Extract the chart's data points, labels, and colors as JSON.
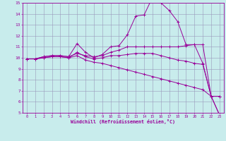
{
  "xlabel": "Windchill (Refroidissement éolien,°C)",
  "xlim": [
    -0.5,
    23.5
  ],
  "ylim": [
    5,
    15
  ],
  "xticks": [
    0,
    1,
    2,
    3,
    4,
    5,
    6,
    7,
    8,
    9,
    10,
    11,
    12,
    13,
    14,
    15,
    16,
    17,
    18,
    19,
    20,
    21,
    22,
    23
  ],
  "yticks": [
    5,
    6,
    7,
    8,
    9,
    10,
    11,
    12,
    13,
    14,
    15
  ],
  "bg_color": "#c8ecec",
  "line_color": "#990099",
  "grid_color": "#9999bb",
  "curves": [
    {
      "x": [
        0,
        1,
        2,
        3,
        4,
        5,
        6,
        7,
        8,
        9,
        10,
        11,
        12,
        13,
        14,
        15,
        16,
        17,
        18,
        19,
        20,
        21,
        22,
        23
      ],
      "y": [
        9.9,
        9.9,
        10.1,
        10.2,
        10.2,
        10.1,
        11.3,
        10.5,
        10.0,
        10.3,
        11.0,
        11.1,
        12.1,
        13.8,
        13.9,
        15.5,
        15.0,
        14.3,
        13.3,
        11.2,
        11.2,
        9.5,
        6.5,
        6.5
      ]
    },
    {
      "x": [
        0,
        1,
        2,
        3,
        4,
        5,
        6,
        7,
        8,
        9,
        10,
        11,
        12,
        13,
        14,
        15,
        16,
        17,
        18,
        19,
        20,
        21,
        22,
        23
      ],
      "y": [
        9.9,
        9.9,
        10.1,
        10.2,
        10.2,
        10.1,
        10.4,
        10.2,
        10.1,
        10.2,
        10.5,
        10.7,
        11.0,
        11.0,
        11.0,
        11.0,
        11.0,
        11.0,
        11.0,
        11.1,
        11.2,
        11.2,
        6.5,
        6.5
      ]
    },
    {
      "x": [
        0,
        1,
        2,
        3,
        4,
        5,
        6,
        7,
        8,
        9,
        10,
        11,
        12,
        13,
        14,
        15,
        16,
        17,
        18,
        19,
        20,
        21,
        22,
        23
      ],
      "y": [
        9.9,
        9.9,
        10.0,
        10.1,
        10.1,
        10.0,
        10.5,
        10.1,
        9.9,
        10.0,
        10.2,
        10.2,
        10.3,
        10.4,
        10.4,
        10.4,
        10.2,
        10.0,
        9.8,
        9.7,
        9.5,
        9.4,
        6.5,
        4.8
      ]
    },
    {
      "x": [
        0,
        1,
        2,
        3,
        4,
        5,
        6,
        7,
        8,
        9,
        10,
        11,
        12,
        13,
        14,
        15,
        16,
        17,
        18,
        19,
        20,
        21,
        22,
        23
      ],
      "y": [
        9.9,
        9.9,
        10.0,
        10.1,
        10.1,
        10.0,
        10.2,
        9.8,
        9.6,
        9.5,
        9.3,
        9.1,
        8.9,
        8.7,
        8.5,
        8.3,
        8.1,
        7.9,
        7.7,
        7.5,
        7.3,
        7.1,
        6.5,
        4.8
      ]
    }
  ]
}
